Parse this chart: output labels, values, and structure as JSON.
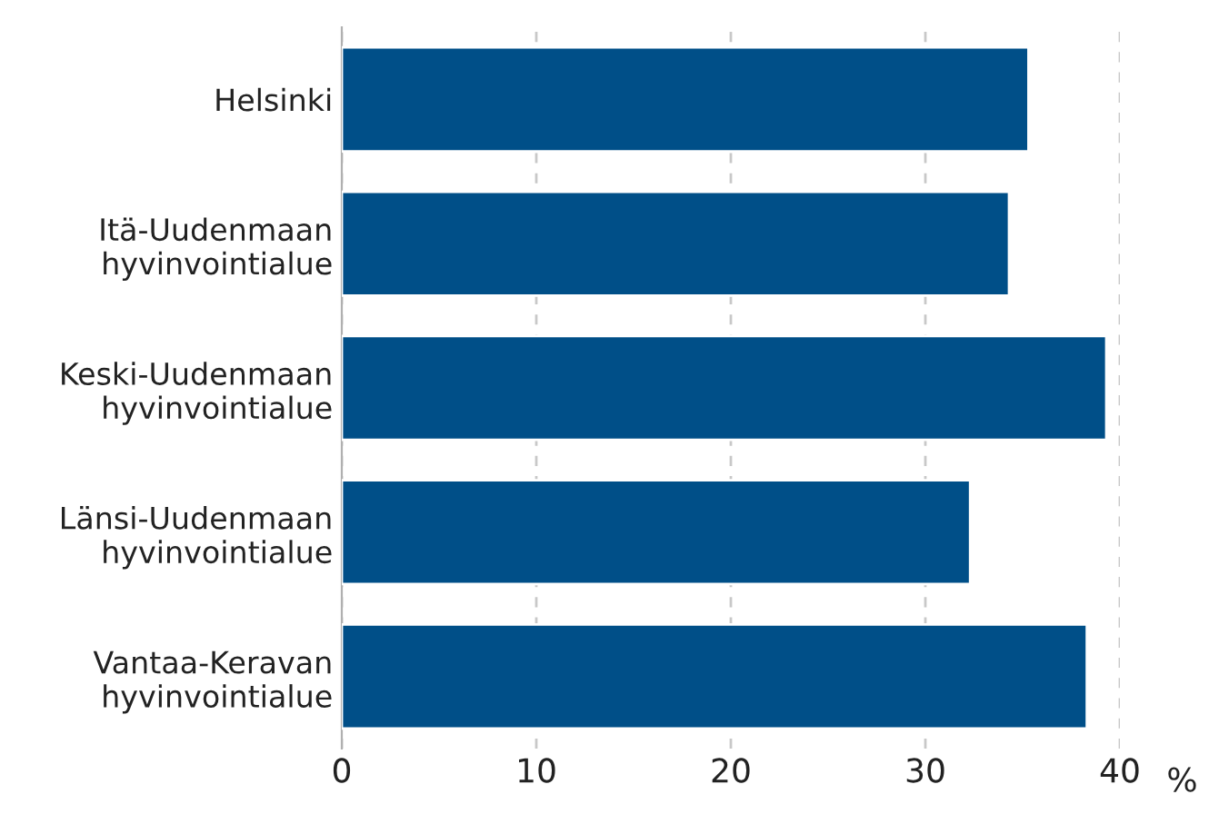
{
  "chart_data": {
    "type": "bar",
    "orientation": "horizontal",
    "xlabel": "%",
    "categories": [
      "Helsinki",
      "Itä-Uudenmaan\nhyvinvointialue",
      "Keski-Uudenmaan\nhyvinvointialue",
      "Länsi-Uudenmaan\nhyvinvointialue",
      "Vantaa-Keravan\nhyvinvointialue"
    ],
    "values": [
      35.3,
      34.3,
      39.3,
      32.3,
      38.3
    ],
    "color": "#004f88",
    "xlim": [
      0,
      40
    ],
    "xticks": [
      0,
      10,
      20,
      30,
      40
    ],
    "grid": "x"
  }
}
